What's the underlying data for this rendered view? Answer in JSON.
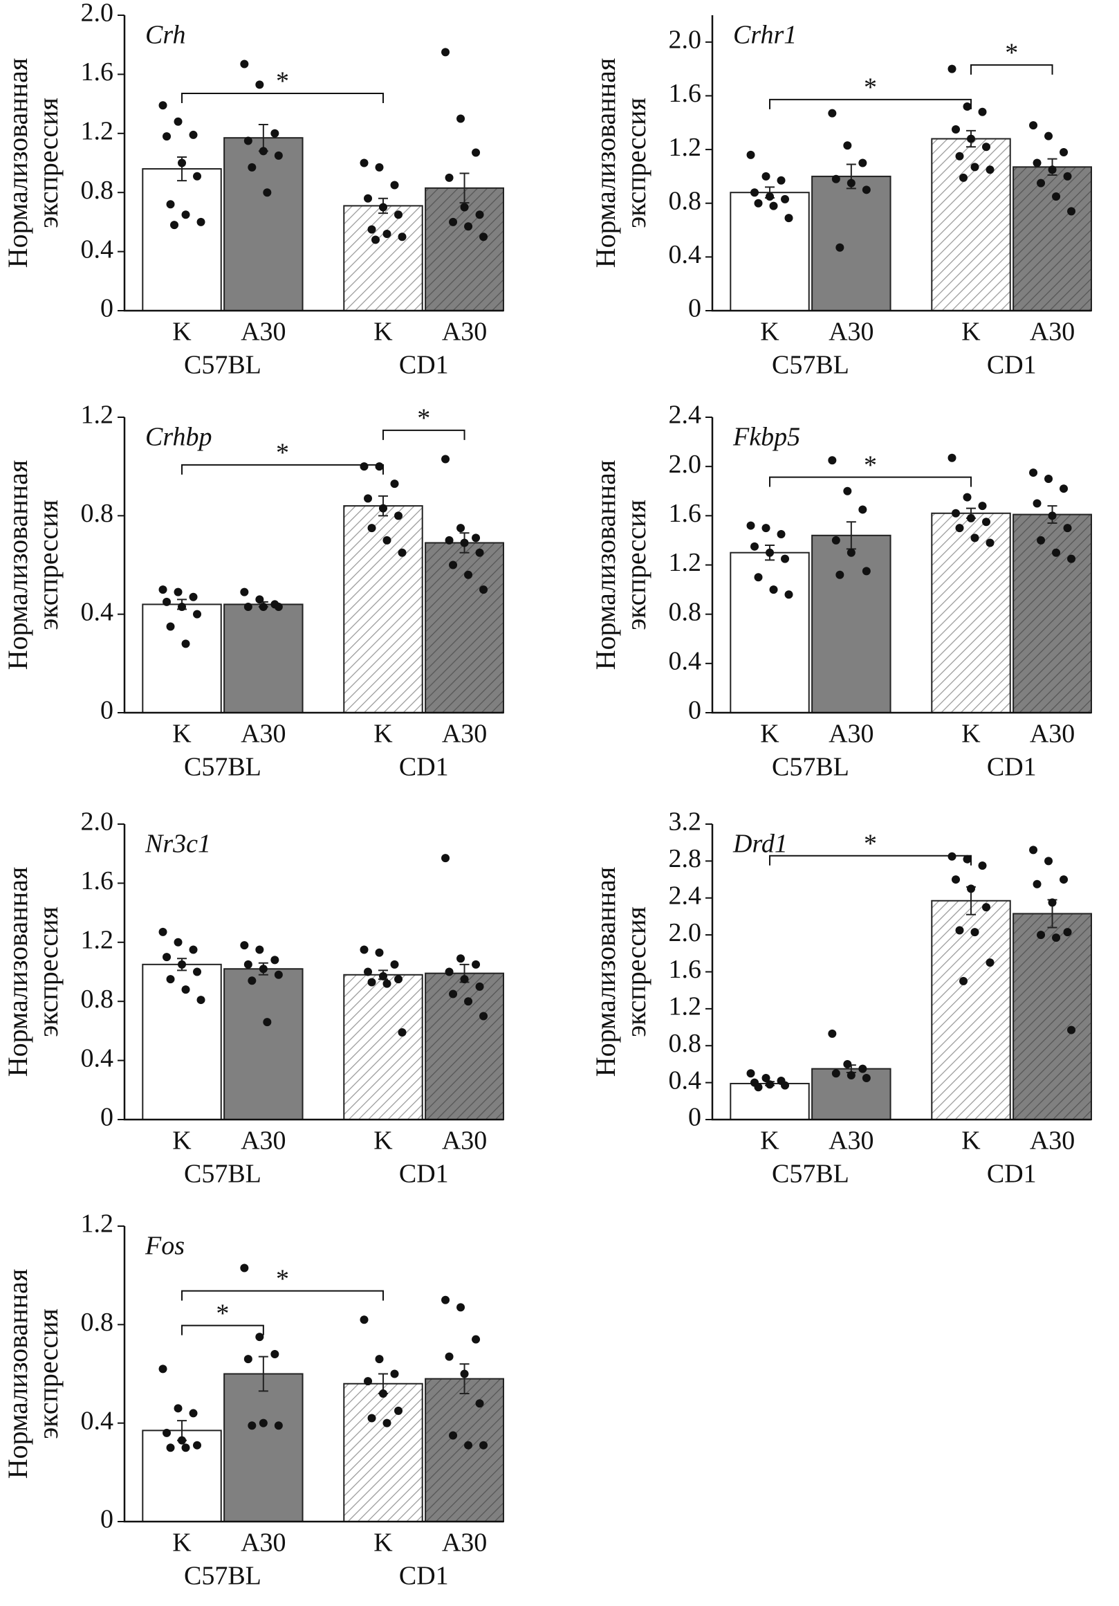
{
  "chart_data": [
    {
      "type": "bar",
      "title": "Crh",
      "ylabel": [
        "Нормализованная",
        "экспрессия"
      ],
      "categories": [
        "K",
        "A30",
        "K",
        "A30"
      ],
      "groups": [
        "C57BL",
        "CD1"
      ],
      "colors": [
        "#ffffff",
        "#808080",
        "#ffffff",
        "#808080"
      ],
      "hatch": [
        false,
        false,
        true,
        true
      ],
      "values": [
        0.96,
        1.17,
        0.71,
        0.83
      ],
      "errors": [
        0.08,
        0.09,
        0.05,
        0.1
      ],
      "points": [
        [
          1.39,
          1.28,
          1.19,
          1.18,
          1.0,
          0.91,
          0.72,
          0.65,
          0.6,
          0.58
        ],
        [
          1.67,
          1.53,
          1.2,
          1.15,
          1.08,
          1.05,
          0.97,
          0.8
        ],
        [
          1.0,
          0.97,
          0.85,
          0.76,
          0.7,
          0.65,
          0.55,
          0.52,
          0.5,
          0.48
        ],
        [
          1.75,
          1.3,
          1.07,
          0.9,
          0.7,
          0.65,
          0.6,
          0.57,
          0.5
        ]
      ],
      "annotations": [
        {
          "text": "*",
          "between": [
            0,
            2
          ]
        }
      ],
      "ylim": [
        0,
        2
      ],
      "yticks": [
        0,
        0.4,
        0.8,
        1.2,
        1.6,
        {
          "value": 2,
          "label": "2.0"
        }
      ]
    },
    {
      "type": "bar",
      "title": "Crhr1",
      "ylabel": [
        "Нормализованная",
        "экспрессия"
      ],
      "categories": [
        "K",
        "A30",
        "K",
        "A30"
      ],
      "groups": [
        "C57BL",
        "CD1"
      ],
      "colors": [
        "#ffffff",
        "#808080",
        "#ffffff",
        "#808080"
      ],
      "hatch": [
        false,
        false,
        true,
        true
      ],
      "values": [
        0.88,
        1.0,
        1.28,
        1.07
      ],
      "errors": [
        0.04,
        0.09,
        0.06,
        0.06
      ],
      "points": [
        [
          1.16,
          1.0,
          0.97,
          0.88,
          0.85,
          0.83,
          0.8,
          0.78,
          0.69
        ],
        [
          1.47,
          1.23,
          1.1,
          0.98,
          0.95,
          0.9,
          0.47
        ],
        [
          1.8,
          1.52,
          1.48,
          1.35,
          1.28,
          1.22,
          1.15,
          1.07,
          1.05,
          0.99
        ],
        [
          1.38,
          1.3,
          1.18,
          1.1,
          1.05,
          1.0,
          0.95,
          0.85,
          0.74
        ]
      ],
      "annotations": [
        {
          "text": "*",
          "between": [
            0,
            2
          ]
        },
        {
          "text": "*",
          "between": [
            2,
            3
          ]
        }
      ],
      "ylim": [
        0,
        2.2
      ],
      "yticks": [
        0,
        0.4,
        0.8,
        1.2,
        1.6,
        {
          "value": 2,
          "label": "2.0"
        }
      ]
    },
    {
      "type": "bar",
      "title": "Crhbp",
      "ylabel": [
        "Нормализованная",
        "экспрессия"
      ],
      "categories": [
        "K",
        "A30",
        "K",
        "A30"
      ],
      "groups": [
        "C57BL",
        "CD1"
      ],
      "colors": [
        "#ffffff",
        "#808080",
        "#ffffff",
        "#808080"
      ],
      "hatch": [
        false,
        false,
        true,
        true
      ],
      "values": [
        0.44,
        0.44,
        0.84,
        0.69
      ],
      "errors": [
        0.02,
        0.01,
        0.04,
        0.04
      ],
      "points": [
        [
          0.5,
          0.49,
          0.47,
          0.45,
          0.43,
          0.4,
          0.35,
          0.28
        ],
        [
          0.49,
          0.46,
          0.44,
          0.43,
          0.43,
          0.43
        ],
        [
          1.0,
          1.0,
          0.93,
          0.87,
          0.83,
          0.8,
          0.75,
          0.7,
          0.65
        ],
        [
          1.03,
          0.75,
          0.71,
          0.7,
          0.69,
          0.65,
          0.6,
          0.56,
          0.5
        ]
      ],
      "annotations": [
        {
          "text": "*",
          "between": [
            0,
            2
          ]
        },
        {
          "text": "*",
          "between": [
            2,
            3
          ]
        }
      ],
      "ylim": [
        0,
        1.2
      ],
      "yticks": [
        0,
        0.4,
        0.8,
        1.2
      ]
    },
    {
      "type": "bar",
      "title": "Fkbp5",
      "ylabel": [
        "Нормализованная",
        "экспрессия"
      ],
      "categories": [
        "K",
        "A30",
        "K",
        "A30"
      ],
      "groups": [
        "C57BL",
        "CD1"
      ],
      "colors": [
        "#ffffff",
        "#808080",
        "#ffffff",
        "#808080"
      ],
      "hatch": [
        false,
        false,
        true,
        true
      ],
      "values": [
        1.3,
        1.44,
        1.62,
        1.61
      ],
      "errors": [
        0.06,
        0.11,
        0.04,
        0.07
      ],
      "points": [
        [
          1.52,
          1.5,
          1.45,
          1.35,
          1.3,
          1.25,
          1.1,
          1.0,
          0.96
        ],
        [
          2.05,
          1.8,
          1.65,
          1.4,
          1.3,
          1.15,
          1.12
        ],
        [
          2.07,
          1.75,
          1.68,
          1.62,
          1.58,
          1.55,
          1.5,
          1.42,
          1.38
        ],
        [
          1.95,
          1.9,
          1.82,
          1.7,
          1.6,
          1.5,
          1.4,
          1.3,
          1.25
        ]
      ],
      "annotations": [
        {
          "text": "*",
          "between": [
            0,
            2
          ]
        }
      ],
      "ylim": [
        0,
        2.4
      ],
      "yticks": [
        0,
        0.4,
        0.8,
        1.2,
        1.6,
        {
          "value": 2,
          "label": "2.0"
        },
        2.4
      ]
    },
    {
      "type": "bar",
      "title": "Nr3c1",
      "ylabel": [
        "Нормализованная",
        "экспрессия"
      ],
      "categories": [
        "K",
        "A30",
        "K",
        "A30"
      ],
      "groups": [
        "C57BL",
        "CD1"
      ],
      "colors": [
        "#ffffff",
        "#808080",
        "#ffffff",
        "#808080"
      ],
      "hatch": [
        false,
        false,
        true,
        true
      ],
      "values": [
        1.05,
        1.02,
        0.98,
        0.99
      ],
      "errors": [
        0.04,
        0.04,
        0.03,
        0.06
      ],
      "points": [
        [
          1.27,
          1.2,
          1.15,
          1.1,
          1.05,
          1.0,
          0.95,
          0.88,
          0.81
        ],
        [
          1.18,
          1.15,
          1.08,
          1.05,
          1.02,
          0.98,
          0.94,
          0.66
        ],
        [
          1.15,
          1.13,
          1.05,
          1.0,
          0.97,
          0.95,
          0.93,
          0.92,
          0.59
        ],
        [
          1.77,
          1.09,
          1.05,
          1.0,
          0.95,
          0.9,
          0.85,
          0.8,
          0.7
        ]
      ],
      "annotations": [],
      "ylim": [
        0,
        2
      ],
      "yticks": [
        0,
        0.4,
        0.8,
        1.2,
        1.6,
        {
          "value": 2,
          "label": "2.0"
        }
      ]
    },
    {
      "type": "bar",
      "title": "Drd1",
      "ylabel": [
        "Нормализованная",
        "экспрессия"
      ],
      "categories": [
        "K",
        "A30",
        "K",
        "A30"
      ],
      "groups": [
        "C57BL",
        "CD1"
      ],
      "colors": [
        "#ffffff",
        "#808080",
        "#ffffff",
        "#808080"
      ],
      "hatch": [
        false,
        false,
        true,
        true
      ],
      "values": [
        0.39,
        0.55,
        2.37,
        2.23
      ],
      "errors": [
        0.02,
        0.04,
        0.15,
        0.15
      ],
      "points": [
        [
          0.5,
          0.45,
          0.42,
          0.4,
          0.38,
          0.37,
          0.35
        ],
        [
          0.93,
          0.6,
          0.55,
          0.5,
          0.48,
          0.45
        ],
        [
          2.85,
          2.82,
          2.75,
          2.6,
          2.5,
          2.3,
          2.05,
          2.03,
          1.7,
          1.5
        ],
        [
          2.92,
          2.8,
          2.6,
          2.55,
          2.35,
          2.03,
          2.0,
          1.97,
          0.97
        ]
      ],
      "annotations": [
        {
          "text": "*",
          "between": [
            0,
            2
          ]
        }
      ],
      "ylim": [
        0,
        3.2
      ],
      "yticks": [
        0,
        0.4,
        0.8,
        1.2,
        1.6,
        {
          "value": 2,
          "label": "2.0"
        },
        2.4,
        2.8,
        3.2
      ]
    },
    {
      "type": "bar",
      "title": "Fos",
      "ylabel": [
        "Нормализованная",
        "экспрессия"
      ],
      "categories": [
        "K",
        "A30",
        "K",
        "A30"
      ],
      "groups": [
        "C57BL",
        "CD1"
      ],
      "colors": [
        "#ffffff",
        "#808080",
        "#ffffff",
        "#808080"
      ],
      "hatch": [
        false,
        false,
        true,
        true
      ],
      "values": [
        0.37,
        0.6,
        0.56,
        0.58
      ],
      "errors": [
        0.04,
        0.07,
        0.04,
        0.06
      ],
      "points": [
        [
          0.62,
          0.46,
          0.44,
          0.36,
          0.33,
          0.31,
          0.3,
          0.3
        ],
        [
          1.03,
          0.75,
          0.68,
          0.66,
          0.4,
          0.39,
          0.39
        ],
        [
          0.82,
          0.66,
          0.6,
          0.57,
          0.52,
          0.45,
          0.42,
          0.4
        ],
        [
          0.9,
          0.87,
          0.74,
          0.67,
          0.6,
          0.48,
          0.35,
          0.31,
          0.31
        ]
      ],
      "annotations": [
        {
          "text": "*",
          "between": [
            0,
            1
          ]
        },
        {
          "text": "*",
          "between": [
            0,
            2
          ]
        }
      ],
      "ylim": [
        0,
        1.2
      ],
      "yticks": [
        0,
        0.4,
        0.8,
        1.2
      ]
    }
  ]
}
